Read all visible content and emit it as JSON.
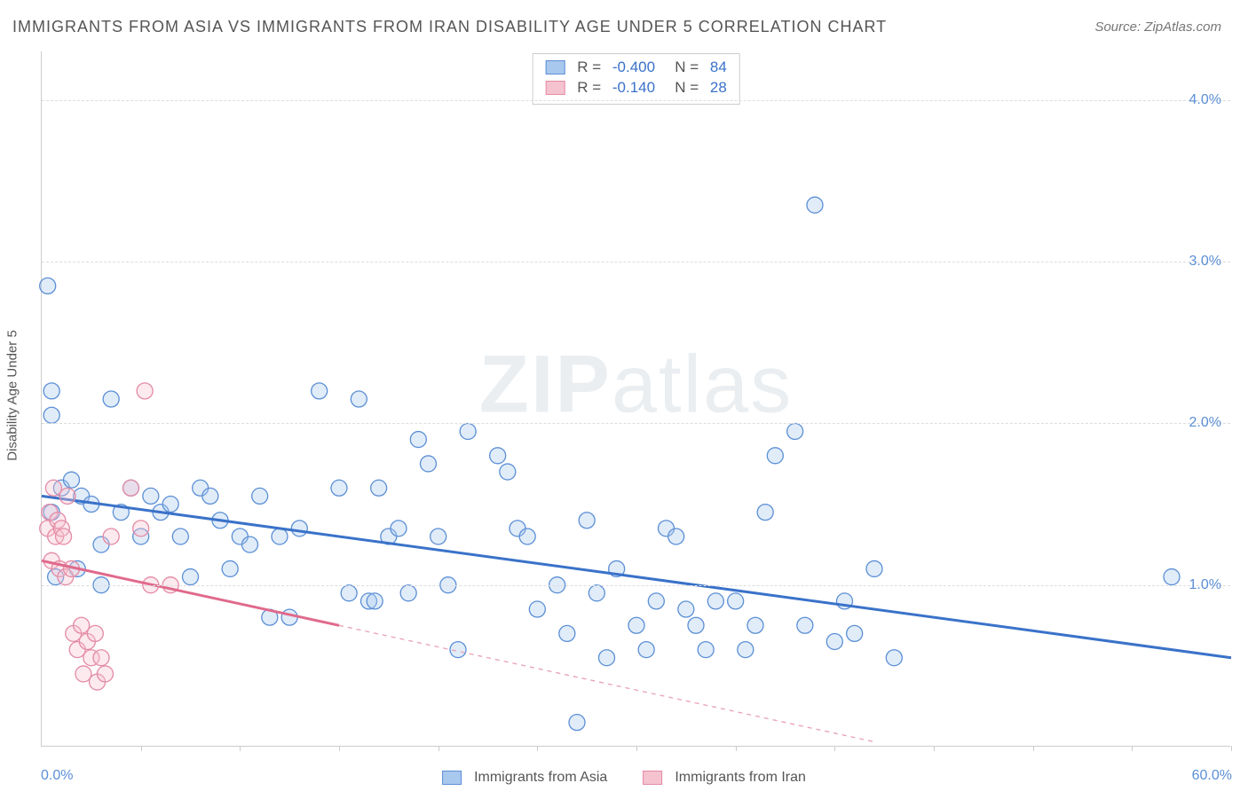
{
  "title": "IMMIGRANTS FROM ASIA VS IMMIGRANTS FROM IRAN DISABILITY AGE UNDER 5 CORRELATION CHART",
  "source_label": "Source: ZipAtlas.com",
  "watermark": {
    "strong": "ZIP",
    "light": "atlas"
  },
  "ylabel": "Disability Age Under 5",
  "chart": {
    "type": "scatter",
    "xlim": [
      0,
      60
    ],
    "ylim": [
      0,
      4.3
    ],
    "x_ticks_minor_count": 12,
    "x_tick_labels": [
      {
        "x": 0,
        "label": "0.0%"
      },
      {
        "x": 60,
        "label": "60.0%"
      }
    ],
    "y_grid": [
      1.0,
      2.0,
      3.0,
      4.0
    ],
    "y_tick_labels": [
      {
        "y": 1.0,
        "label": "1.0%"
      },
      {
        "y": 2.0,
        "label": "2.0%"
      },
      {
        "y": 3.0,
        "label": "3.0%"
      },
      {
        "y": 4.0,
        "label": "4.0%"
      }
    ],
    "background_color": "#ffffff",
    "grid_color": "#dddddd",
    "marker_radius": 9,
    "marker_stroke_width": 1.3,
    "marker_fill_opacity": 0.35,
    "series": [
      {
        "id": "asia",
        "label": "Immigrants from Asia",
        "color_fill": "#a9c8ee",
        "color_stroke": "#5b8fd6",
        "trend": {
          "x1": 0,
          "y1": 1.55,
          "x2": 60,
          "y2": 0.55,
          "stroke": "#3a72c9",
          "width": 3,
          "dash": ""
        },
        "trend_ext": null,
        "R": "-0.400",
        "N": "84",
        "points": [
          [
            0.3,
            2.85
          ],
          [
            0.5,
            2.2
          ],
          [
            0.5,
            2.05
          ],
          [
            0.5,
            1.45
          ],
          [
            0.7,
            1.05
          ],
          [
            1.0,
            1.6
          ],
          [
            1.5,
            1.65
          ],
          [
            1.8,
            1.1
          ],
          [
            2.0,
            1.55
          ],
          [
            2.5,
            1.5
          ],
          [
            3.0,
            1.25
          ],
          [
            3.0,
            1.0
          ],
          [
            3.5,
            2.15
          ],
          [
            4.0,
            1.45
          ],
          [
            4.5,
            1.6
          ],
          [
            5.0,
            1.3
          ],
          [
            5.5,
            1.55
          ],
          [
            6.0,
            1.45
          ],
          [
            6.5,
            1.5
          ],
          [
            7.0,
            1.3
          ],
          [
            7.5,
            1.05
          ],
          [
            8.0,
            1.6
          ],
          [
            8.5,
            1.55
          ],
          [
            9.0,
            1.4
          ],
          [
            9.5,
            1.1
          ],
          [
            10.0,
            1.3
          ],
          [
            10.5,
            1.25
          ],
          [
            11.0,
            1.55
          ],
          [
            11.5,
            0.8
          ],
          [
            12.0,
            1.3
          ],
          [
            12.5,
            0.8
          ],
          [
            13.0,
            1.35
          ],
          [
            14.0,
            2.2
          ],
          [
            15.0,
            1.6
          ],
          [
            15.5,
            0.95
          ],
          [
            16.0,
            2.15
          ],
          [
            16.5,
            0.9
          ],
          [
            16.8,
            0.9
          ],
          [
            17.0,
            1.6
          ],
          [
            17.5,
            1.3
          ],
          [
            18.0,
            1.35
          ],
          [
            18.5,
            0.95
          ],
          [
            19.0,
            1.9
          ],
          [
            19.5,
            1.75
          ],
          [
            20.0,
            1.3
          ],
          [
            20.5,
            1.0
          ],
          [
            21.0,
            0.6
          ],
          [
            21.5,
            1.95
          ],
          [
            23.0,
            1.8
          ],
          [
            23.5,
            1.7
          ],
          [
            24.0,
            1.35
          ],
          [
            24.5,
            1.3
          ],
          [
            25.0,
            0.85
          ],
          [
            26.0,
            1.0
          ],
          [
            26.5,
            0.7
          ],
          [
            27.0,
            0.15
          ],
          [
            27.5,
            1.4
          ],
          [
            28.0,
            0.95
          ],
          [
            28.5,
            0.55
          ],
          [
            29.0,
            1.1
          ],
          [
            30.0,
            0.75
          ],
          [
            30.5,
            0.6
          ],
          [
            31.0,
            0.9
          ],
          [
            31.5,
            1.35
          ],
          [
            32.0,
            1.3
          ],
          [
            32.5,
            0.85
          ],
          [
            33.0,
            0.75
          ],
          [
            33.5,
            0.6
          ],
          [
            34.0,
            0.9
          ],
          [
            35.0,
            0.9
          ],
          [
            35.5,
            0.6
          ],
          [
            36.0,
            0.75
          ],
          [
            36.5,
            1.45
          ],
          [
            37.0,
            1.8
          ],
          [
            38.0,
            1.95
          ],
          [
            38.5,
            0.75
          ],
          [
            39.0,
            3.35
          ],
          [
            40.0,
            0.65
          ],
          [
            40.5,
            0.9
          ],
          [
            41.0,
            0.7
          ],
          [
            42.0,
            1.1
          ],
          [
            43.0,
            0.55
          ],
          [
            57.0,
            1.05
          ]
        ]
      },
      {
        "id": "iran",
        "label": "Immigrants from Iran",
        "color_fill": "#f5c3d0",
        "color_stroke": "#e48aa4",
        "trend": {
          "x1": 0,
          "y1": 1.15,
          "x2": 15,
          "y2": 0.75,
          "stroke": "#e06a8c",
          "width": 3,
          "dash": ""
        },
        "trend_ext": {
          "x1": 15,
          "y1": 0.75,
          "x2": 42,
          "y2": 0.03,
          "stroke": "#e8a0b4",
          "width": 1.3,
          "dash": "5,5"
        },
        "R": "-0.140",
        "N": "28",
        "points": [
          [
            0.3,
            1.35
          ],
          [
            0.4,
            1.45
          ],
          [
            0.5,
            1.15
          ],
          [
            0.6,
            1.6
          ],
          [
            0.7,
            1.3
          ],
          [
            0.8,
            1.4
          ],
          [
            0.9,
            1.1
          ],
          [
            1.0,
            1.35
          ],
          [
            1.1,
            1.3
          ],
          [
            1.2,
            1.05
          ],
          [
            1.3,
            1.55
          ],
          [
            1.5,
            1.1
          ],
          [
            1.6,
            0.7
          ],
          [
            1.8,
            0.6
          ],
          [
            2.0,
            0.75
          ],
          [
            2.1,
            0.45
          ],
          [
            2.3,
            0.65
          ],
          [
            2.5,
            0.55
          ],
          [
            2.7,
            0.7
          ],
          [
            2.8,
            0.4
          ],
          [
            3.0,
            0.55
          ],
          [
            3.2,
            0.45
          ],
          [
            3.5,
            1.3
          ],
          [
            4.5,
            1.6
          ],
          [
            5.0,
            1.35
          ],
          [
            5.2,
            2.2
          ],
          [
            5.5,
            1.0
          ],
          [
            6.5,
            1.0
          ]
        ]
      }
    ]
  },
  "stats_legend_labels": {
    "R": "R =",
    "N": "N ="
  },
  "bottom_legend": [
    {
      "series": "asia"
    },
    {
      "series": "iran"
    }
  ]
}
